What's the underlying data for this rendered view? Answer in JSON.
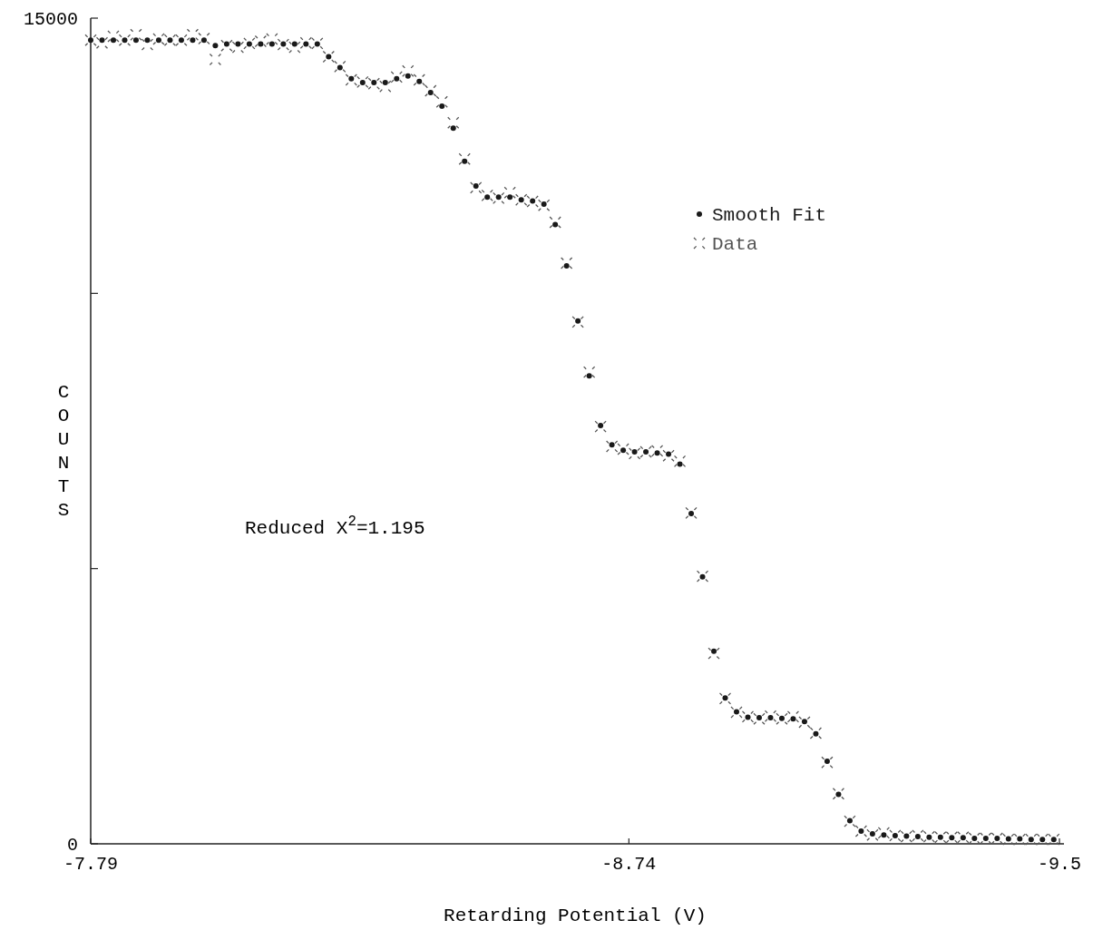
{
  "chart_data": {
    "type": "scatter",
    "xlabel": "Retarding Potential (V)",
    "ylabel": "COUNTS",
    "xlim": [
      -7.79,
      -9.5
    ],
    "xticks": [
      -7.79,
      -8.74,
      -9.5
    ],
    "ylim": [
      0,
      15000
    ],
    "yticks": [
      0,
      {
        "value": 5000,
        "label": null
      },
      {
        "value": 10000,
        "label": null
      },
      15000
    ],
    "grid": false,
    "legend": "top right",
    "annotations": [
      "Reduced X$^{2}$=1.195"
    ],
    "x": [
      -7.79,
      -7.81,
      -7.83,
      -7.85,
      -7.87,
      -7.89,
      -7.91,
      -7.93,
      -7.95,
      -7.97,
      -7.99,
      -8.01,
      -8.03,
      -8.05,
      -8.07,
      -8.09,
      -8.11,
      -8.13,
      -8.15,
      -8.17,
      -8.19,
      -8.21,
      -8.23,
      -8.25,
      -8.27,
      -8.29,
      -8.31,
      -8.33,
      -8.35,
      -8.37,
      -8.39,
      -8.41,
      -8.43,
      -8.45,
      -8.47,
      -8.49,
      -8.51,
      -8.53,
      -8.55,
      -8.57,
      -8.59,
      -8.61,
      -8.63,
      -8.65,
      -8.67,
      -8.69,
      -8.71,
      -8.73,
      -8.75,
      -8.77,
      -8.79,
      -8.81,
      -8.83,
      -8.85,
      -8.87,
      -8.89,
      -8.91,
      -8.93,
      -8.95,
      -8.97,
      -8.99,
      -9.01,
      -9.03,
      -9.05,
      -9.07,
      -9.09,
      -9.11,
      -9.13,
      -9.15,
      -9.17,
      -9.19,
      -9.21,
      -9.23,
      -9.25,
      -9.27,
      -9.29,
      -9.31,
      -9.33,
      -9.35,
      -9.37,
      -9.39,
      -9.41,
      -9.43,
      -9.45,
      -9.47,
      -9.49
    ],
    "series": [
      {
        "name": "Smooth Fit",
        "color": "#1a1a1a",
        "marker": "circle",
        "values": [
          14600,
          14600,
          14600,
          14600,
          14600,
          14600,
          14600,
          14600,
          14600,
          14600,
          14600,
          14500,
          14530,
          14530,
          14530,
          14530,
          14530,
          14530,
          14530,
          14530,
          14530,
          14300,
          14100,
          13900,
          13830,
          13830,
          13830,
          13900,
          13950,
          13850,
          13650,
          13400,
          13000,
          12400,
          11950,
          11750,
          11750,
          11750,
          11700,
          11680,
          11620,
          11250,
          10500,
          9500,
          8500,
          7600,
          7250,
          7150,
          7120,
          7120,
          7100,
          7080,
          6900,
          6000,
          4850,
          3500,
          2650,
          2400,
          2300,
          2290,
          2290,
          2280,
          2270,
          2220,
          2000,
          1500,
          900,
          420,
          230,
          180,
          160,
          150,
          140,
          130,
          120,
          120,
          110,
          110,
          100,
          100,
          100,
          90,
          90,
          80,
          80,
          80
        ]
      },
      {
        "name": "Data",
        "color": "#555555",
        "marker": "cross",
        "values": [
          14600,
          14550,
          14670,
          14600,
          14700,
          14520,
          14620,
          14600,
          14600,
          14700,
          14630,
          14250,
          14500,
          14470,
          14540,
          14580,
          14620,
          14520,
          14470,
          14550,
          14540,
          14300,
          14120,
          13880,
          13840,
          13810,
          13760,
          13930,
          14040,
          13880,
          13680,
          13480,
          13100,
          12440,
          11920,
          11780,
          11730,
          11830,
          11700,
          11670,
          11600,
          11290,
          10550,
          9480,
          8570,
          7580,
          7220,
          7170,
          7090,
          7120,
          7140,
          7050,
          6950,
          6010,
          4860,
          3460,
          2640,
          2390,
          2310,
          2270,
          2320,
          2270,
          2310,
          2210,
          2010,
          1480,
          910,
          410,
          230,
          160,
          200,
          150,
          130,
          150,
          130,
          120,
          120,
          120,
          100,
          100,
          100,
          80,
          80,
          80,
          80,
          80
        ]
      }
    ]
  }
}
